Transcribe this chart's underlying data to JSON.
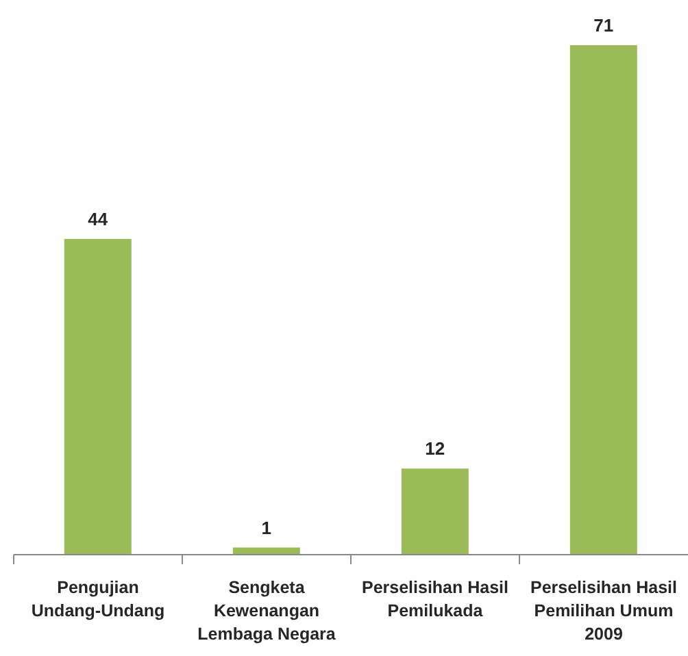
{
  "chart_data": {
    "type": "bar",
    "categories": [
      "Pengujian Undang-Undang",
      "Sengketa Kewenangan Lembaga Negara",
      "Perselisihan Hasil Pemilukada",
      "Perselisihan Hasil Pemilihan Umum 2009"
    ],
    "values": [
      44,
      1,
      12,
      71
    ],
    "color": "#9bbb59",
    "data_labels": true
  }
}
